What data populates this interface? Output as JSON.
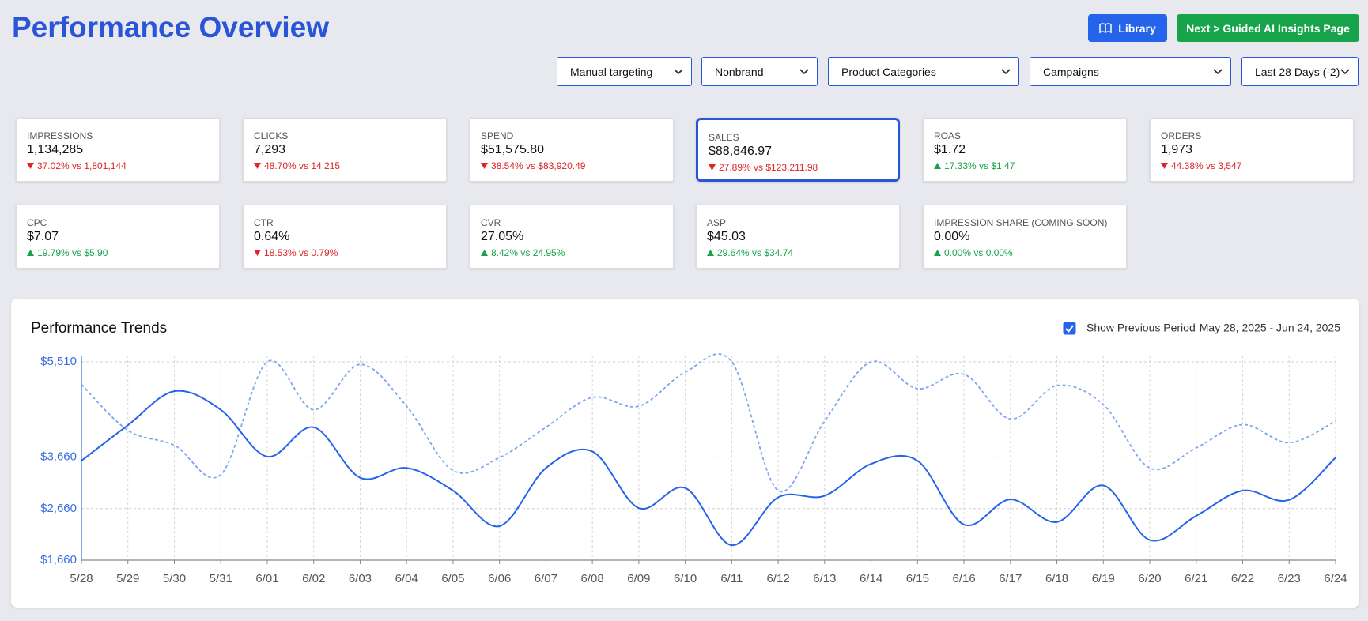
{
  "header": {
    "title": "Performance Overview",
    "buttons": [
      "Library",
      "Next > Guided AI Insights Page"
    ]
  },
  "filters": [
    "Manual targeting",
    "Nonbrand",
    "Product Categories",
    "Campaigns",
    "Last 28 Days (-2)"
  ],
  "metrics": [
    {
      "label": "IMPRESSIONS",
      "value": "1,134,285",
      "change": "37.02% vs 1,801,144",
      "trend": "down"
    },
    {
      "label": "CLICKS",
      "value": "7,293",
      "change": "48.70% vs 14,215",
      "trend": "down"
    },
    {
      "label": "SPEND",
      "value": "$51,575.80",
      "change": "38.54% vs $83,920.49",
      "trend": "down"
    },
    {
      "label": "SALES",
      "value": "$88,846.97",
      "change": "27.89% vs $123,211.98",
      "trend": "down",
      "selected": true
    },
    {
      "label": "ROAS",
      "value": "$1.72",
      "change": "17.33% vs $1.47",
      "trend": "up"
    },
    {
      "label": "ORDERS",
      "value": "1,973",
      "change": "44.38% vs 3,547",
      "trend": "down"
    },
    {
      "label": "CPC",
      "value": "$7.07",
      "change": "19.79% vs $5.90",
      "trend": "up"
    },
    {
      "label": "CTR",
      "value": "0.64%",
      "change": "18.53% vs 0.79%",
      "trend": "down"
    },
    {
      "label": "CVR",
      "value": "27.05%",
      "change": "8.42% vs 24.95%",
      "trend": "up"
    },
    {
      "label": "ASP",
      "value": "$45.03",
      "change": "29.64% vs $34.74",
      "trend": "up"
    },
    {
      "label": "IMPRESSION SHARE (COMING SOON)",
      "value": "0.00%",
      "change": "0.00% vs 0.00%",
      "trend": "up"
    }
  ],
  "chart": {
    "type": "line",
    "title": "Performance Trends",
    "checkbox_label": "Show Previous Period",
    "checked": true,
    "date_range": "May 28, 2025 - Jun 24, 2025",
    "categories": [
      "5/28",
      "5/29",
      "5/30",
      "5/31",
      "6/01",
      "6/02",
      "6/03",
      "6/04",
      "6/05",
      "6/06",
      "6/07",
      "6/08",
      "6/09",
      "6/10",
      "6/11",
      "6/12",
      "6/13",
      "6/14",
      "6/15",
      "6/16",
      "6/17",
      "6/18",
      "6/19",
      "6/20",
      "6/21",
      "6/22",
      "6/23",
      "6/24"
    ],
    "ylim": [
      1660,
      5510
    ],
    "yticks": [
      {
        "value": 1660,
        "label": "$1,660"
      },
      {
        "value": 2660,
        "label": "$2,660"
      },
      {
        "value": 3660,
        "label": "$3,660"
      },
      {
        "value": 5510,
        "label": "$5,510"
      }
    ],
    "grid": true,
    "series": [
      {
        "color": "#2563eb",
        "dashed": false,
        "values": [
          3590,
          4280,
          4940,
          4580,
          3670,
          4240,
          3260,
          3450,
          3010,
          2320,
          3450,
          3770,
          2670,
          3060,
          1950,
          2880,
          2910,
          3530,
          3590,
          2350,
          2840,
          2400,
          3110,
          2050,
          2520,
          3010,
          2830,
          3650
        ]
      },
      {
        "color": "#7ea6f0",
        "dashed": true,
        "values": [
          5070,
          4180,
          3890,
          3320,
          5510,
          4580,
          5460,
          4650,
          3400,
          3650,
          4240,
          4820,
          4650,
          5310,
          5510,
          3010,
          4360,
          5510,
          4990,
          5270,
          4400,
          5050,
          4680,
          3450,
          3840,
          4290,
          3940,
          4360
        ]
      }
    ]
  }
}
